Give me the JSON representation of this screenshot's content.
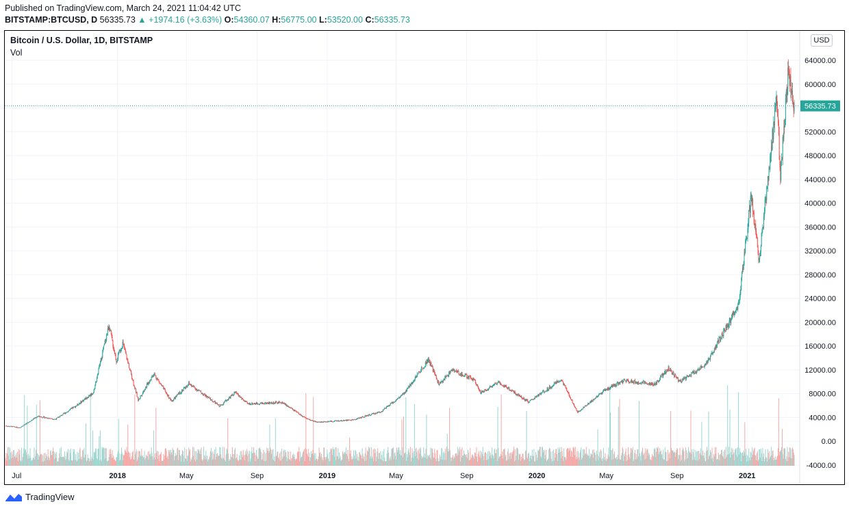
{
  "header": {
    "published": "Published on TradingView.com, March 24, 2021 11:04:42 UTC",
    "symbol": "BITSTAMP:BTCUSD, D",
    "last": "56335.73",
    "change": "▲ +1974.16 (+3.63%)",
    "o_label": "O:",
    "o_val": "54360.07",
    "h_label": "H:",
    "h_val": "56775.00",
    "l_label": "L:",
    "l_val": "53520.00",
    "c_label": "C:",
    "c_val": "56335.73"
  },
  "legend": {
    "title": "Bitcoin / U.S. Dollar, 1D, BITSTAMP",
    "volume": "Vol"
  },
  "currency_button": "USD",
  "price_tag": "56335.73",
  "brand": {
    "name": "TradingView",
    "icon": "tradingview-logo-icon"
  },
  "colors": {
    "up": "#26a69a",
    "down": "#ef5350",
    "vol_up": "#9cd6d1",
    "vol_down": "#f4a9a7"
  },
  "chart_data": {
    "type": "candlestick",
    "title": "Bitcoin / U.S. Dollar, 1D, BITSTAMP",
    "y_axis": {
      "min": -4000,
      "max": 68000,
      "ticks": [
        -4000,
        0,
        4000,
        8000,
        12000,
        16000,
        20000,
        24000,
        28000,
        32000,
        36000,
        40000,
        44000,
        48000,
        52000,
        56000,
        60000,
        64000
      ],
      "scale": "linear",
      "side": "right"
    },
    "x_ticks": [
      {
        "label": "Jul",
        "date": "2017-07",
        "bold": false
      },
      {
        "label": "2018",
        "date": "2018-01",
        "bold": true
      },
      {
        "label": "May",
        "date": "2018-05",
        "bold": false
      },
      {
        "label": "Sep",
        "date": "2018-09",
        "bold": false
      },
      {
        "label": "2019",
        "date": "2019-01",
        "bold": true
      },
      {
        "label": "May",
        "date": "2019-05",
        "bold": false
      },
      {
        "label": "Sep",
        "date": "2019-09",
        "bold": false
      },
      {
        "label": "2020",
        "date": "2020-01",
        "bold": true
      },
      {
        "label": "May",
        "date": "2020-05",
        "bold": false
      },
      {
        "label": "Sep",
        "date": "2020-09",
        "bold": false
      },
      {
        "label": "2021",
        "date": "2021-01",
        "bold": true
      }
    ],
    "last_price": 56335.73,
    "price_series_approx": [
      {
        "date": "2017-06-20",
        "close": 2600
      },
      {
        "date": "2017-07-15",
        "close": 2300
      },
      {
        "date": "2017-08-15",
        "close": 4200
      },
      {
        "date": "2017-09-15",
        "close": 3700
      },
      {
        "date": "2017-10-20",
        "close": 5900
      },
      {
        "date": "2017-11-20",
        "close": 8200
      },
      {
        "date": "2017-12-17",
        "close": 19500
      },
      {
        "date": "2017-12-30",
        "close": 13500
      },
      {
        "date": "2018-01-10",
        "close": 16500
      },
      {
        "date": "2018-02-06",
        "close": 6900
      },
      {
        "date": "2018-03-05",
        "close": 11400
      },
      {
        "date": "2018-04-05",
        "close": 6700
      },
      {
        "date": "2018-05-05",
        "close": 9700
      },
      {
        "date": "2018-06-28",
        "close": 5900
      },
      {
        "date": "2018-07-25",
        "close": 8200
      },
      {
        "date": "2018-08-15",
        "close": 6300
      },
      {
        "date": "2018-10-15",
        "close": 6500
      },
      {
        "date": "2018-11-25",
        "close": 3800
      },
      {
        "date": "2018-12-15",
        "close": 3200
      },
      {
        "date": "2019-02-15",
        "close": 3600
      },
      {
        "date": "2019-04-05",
        "close": 5000
      },
      {
        "date": "2019-05-15",
        "close": 8000
      },
      {
        "date": "2019-06-26",
        "close": 13800
      },
      {
        "date": "2019-07-15",
        "close": 9500
      },
      {
        "date": "2019-08-06",
        "close": 12000
      },
      {
        "date": "2019-09-15",
        "close": 10300
      },
      {
        "date": "2019-09-25",
        "close": 8100
      },
      {
        "date": "2019-10-26",
        "close": 10000
      },
      {
        "date": "2019-12-18",
        "close": 6600
      },
      {
        "date": "2020-02-12",
        "close": 10400
      },
      {
        "date": "2020-03-12",
        "close": 4900
      },
      {
        "date": "2020-04-30",
        "close": 8700
      },
      {
        "date": "2020-06-01",
        "close": 10200
      },
      {
        "date": "2020-07-25",
        "close": 9600
      },
      {
        "date": "2020-08-17",
        "close": 12300
      },
      {
        "date": "2020-09-05",
        "close": 10000
      },
      {
        "date": "2020-10-21",
        "close": 12900
      },
      {
        "date": "2020-11-25",
        "close": 19000
      },
      {
        "date": "2020-12-17",
        "close": 23000
      },
      {
        "date": "2021-01-08",
        "close": 41000
      },
      {
        "date": "2021-01-22",
        "close": 30500
      },
      {
        "date": "2021-02-21",
        "close": 57500
      },
      {
        "date": "2021-02-28",
        "close": 45000
      },
      {
        "date": "2021-03-13",
        "close": 61500
      },
      {
        "date": "2021-03-24",
        "close": 56335.73
      }
    ]
  }
}
